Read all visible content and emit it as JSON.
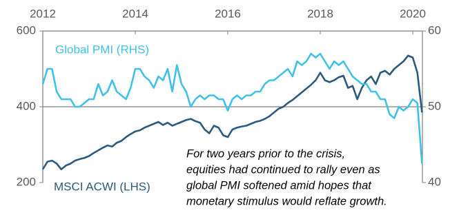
{
  "chart_data": {
    "type": "line",
    "x": [
      2012,
      2012.1,
      2012.2,
      2012.3,
      2012.4,
      2012.5,
      2012.6,
      2012.7,
      2012.8,
      2012.9,
      2013,
      2013.1,
      2013.2,
      2013.3,
      2013.4,
      2013.5,
      2013.6,
      2013.7,
      2013.8,
      2013.9,
      2014,
      2014.1,
      2014.2,
      2014.3,
      2014.4,
      2014.5,
      2014.6,
      2014.7,
      2014.8,
      2014.9,
      2015,
      2015.1,
      2015.2,
      2015.3,
      2015.4,
      2015.5,
      2015.6,
      2015.7,
      2015.8,
      2015.9,
      2016,
      2016.1,
      2016.2,
      2016.3,
      2016.4,
      2016.5,
      2016.6,
      2016.7,
      2016.8,
      2016.9,
      2017,
      2017.1,
      2017.2,
      2017.3,
      2017.4,
      2017.5,
      2017.6,
      2017.7,
      2017.8,
      2017.9,
      2018,
      2018.1,
      2018.2,
      2018.3,
      2018.4,
      2018.5,
      2018.6,
      2018.7,
      2018.8,
      2018.9,
      2019,
      2019.1,
      2019.2,
      2019.3,
      2019.4,
      2019.5,
      2019.6,
      2019.7,
      2019.8,
      2019.9,
      2020,
      2020.1,
      2020.2
    ],
    "series": [
      {
        "name": "MSCI ACWI (LHS)",
        "color": "#2b5a7e",
        "axis": "y",
        "values": [
          235,
          255,
          258,
          250,
          235,
          245,
          250,
          258,
          262,
          265,
          270,
          278,
          285,
          292,
          298,
          295,
          305,
          310,
          320,
          328,
          335,
          338,
          345,
          350,
          355,
          360,
          352,
          358,
          350,
          355,
          360,
          365,
          368,
          362,
          358,
          340,
          330,
          350,
          345,
          325,
          320,
          340,
          345,
          348,
          350,
          355,
          360,
          363,
          368,
          375,
          385,
          395,
          400,
          410,
          418,
          428,
          438,
          448,
          458,
          470,
          490,
          470,
          465,
          470,
          478,
          482,
          450,
          455,
          420,
          450,
          470,
          480,
          460,
          490,
          495,
          485,
          500,
          510,
          520,
          535,
          530,
          490,
          385
        ]
      },
      {
        "name": "Global PMI (RHS)",
        "color": "#3fc1e9",
        "axis": "y2",
        "values": [
          53,
          55,
          55,
          52,
          51,
          51,
          51,
          50,
          50,
          50.5,
          51,
          51,
          53,
          51.5,
          52,
          53.5,
          52,
          51.5,
          51,
          52.5,
          55,
          55,
          54,
          53.5,
          52.5,
          54,
          53.5,
          55,
          52,
          55.5,
          53,
          52,
          50,
          51,
          51.5,
          51,
          51.5,
          51.5,
          51,
          51,
          49.5,
          51,
          51.5,
          51,
          51.5,
          51.5,
          52,
          52,
          53,
          53.5,
          53.5,
          54,
          54.5,
          55,
          54,
          56,
          55.5,
          56,
          57,
          56.5,
          57,
          56,
          55,
          56,
          55.5,
          56,
          55,
          54,
          53.5,
          53,
          53,
          52,
          52,
          51,
          51,
          49,
          48.5,
          50,
          49.5,
          50,
          51,
          50.5,
          42.5
        ]
      }
    ],
    "xlim": [
      2012,
      2020.2
    ],
    "xticks": [
      2012,
      2014,
      2016,
      2018,
      2020
    ],
    "ylim": [
      200,
      600
    ],
    "yticks": [
      200,
      400,
      600
    ],
    "y2lim": [
      40,
      60
    ],
    "y2ticks": [
      40,
      50,
      60
    ],
    "grid": true,
    "annotation": [
      "For two years prior to the crisis,",
      "equities had continued to rally even as",
      "global PMI softened amid hopes that",
      "monetary stimulus would reflate growth."
    ]
  }
}
